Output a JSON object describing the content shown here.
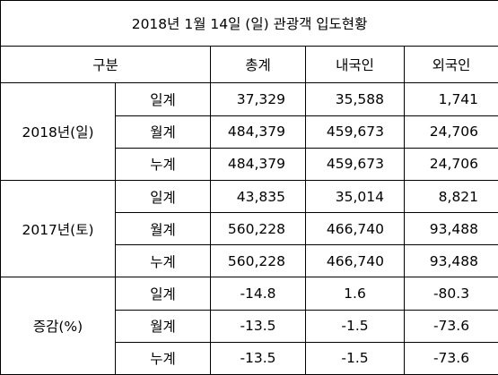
{
  "title": "2018년 1월 14일 (일) 관광객 입도현황",
  "headers": {
    "category": "구분",
    "total": "총계",
    "domestic": "내국인",
    "foreign": "외국인"
  },
  "groups": [
    {
      "label": "2018년(일)",
      "rows": [
        {
          "sub": "일계",
          "total": "37,329",
          "domestic": "35,588",
          "foreign": "1,741"
        },
        {
          "sub": "월계",
          "total": "484,379",
          "domestic": "459,673",
          "foreign": "24,706"
        },
        {
          "sub": "누계",
          "total": "484,379",
          "domestic": "459,673",
          "foreign": "24,706"
        }
      ]
    },
    {
      "label": "2017년(토)",
      "rows": [
        {
          "sub": "일계",
          "total": "43,835",
          "domestic": "35,014",
          "foreign": "8,821"
        },
        {
          "sub": "월계",
          "total": "560,228",
          "domestic": "466,740",
          "foreign": "93,488"
        },
        {
          "sub": "누계",
          "total": "560,228",
          "domestic": "466,740",
          "foreign": "93,488"
        }
      ]
    },
    {
      "label": "증감(%)",
      "rows": [
        {
          "sub": "일계",
          "total": "-14.8",
          "domestic": "1.6",
          "foreign": "-80.3"
        },
        {
          "sub": "월계",
          "total": "-13.5",
          "domestic": "-1.5",
          "foreign": "-73.6"
        },
        {
          "sub": "누계",
          "total": "-13.5",
          "domestic": "-1.5",
          "foreign": "-73.6"
        }
      ]
    }
  ]
}
